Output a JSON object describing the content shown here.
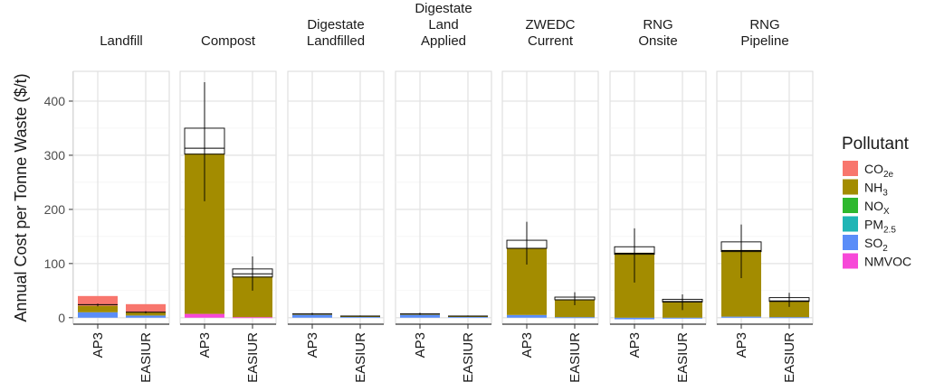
{
  "chart_data": {
    "type": "bar",
    "stacked": true,
    "ylabel": "Annual Cost per Tonne Waste ($/t)",
    "ylim": [
      -12,
      455
    ],
    "yticks": [
      0,
      100,
      200,
      300,
      400
    ],
    "grid": true,
    "legend_position": "right",
    "legend": {
      "title": "Pollutant",
      "items": [
        {
          "key": "CO2e",
          "base": "CO",
          "sub": "2e",
          "color": "#F8766D"
        },
        {
          "key": "NH3",
          "base": "NH",
          "sub": "3",
          "color": "#A38C00"
        },
        {
          "key": "NOX",
          "base": "NO",
          "sub": "X",
          "color": "#2EB82E"
        },
        {
          "key": "PM25",
          "base": "PM",
          "sub": "2.5",
          "color": "#1FB5B5"
        },
        {
          "key": "SO2",
          "base": "SO",
          "sub": "2",
          "color": "#5A8DF8"
        },
        {
          "key": "NMVOC",
          "base": "NMVOC",
          "sub": "",
          "color": "#F748D8"
        }
      ]
    },
    "categories": [
      "AP3",
      "EASIUR"
    ],
    "category_labels": [
      "AP3",
      "EASIUR"
    ],
    "facets": [
      {
        "title": [
          "Landfill"
        ],
        "bars": [
          {
            "segments": [
              {
                "key": "SO2",
                "value": 10
              },
              {
                "key": "NH3",
                "value": 12
              },
              {
                "key": "CO2e",
                "value": 18
              }
            ],
            "median": 24,
            "errlow": 21,
            "errhigh": 26
          },
          {
            "segments": [
              {
                "key": "SO2",
                "value": 4
              },
              {
                "key": "NH3",
                "value": 6
              },
              {
                "key": "CO2e",
                "value": 15
              }
            ],
            "median": 10,
            "errlow": 8,
            "errhigh": 12
          }
        ]
      },
      {
        "title": [
          "Compost"
        ],
        "bars": [
          {
            "segments": [
              {
                "key": "NMVOC",
                "value": 7
              },
              {
                "key": "NH3",
                "value": 296
              }
            ],
            "box": [
              302,
              350
            ],
            "median": 313,
            "errlow": 215,
            "errhigh": 435
          },
          {
            "segments": [
              {
                "key": "NMVOC",
                "value": 1
              },
              {
                "key": "NH3",
                "value": 75
              }
            ],
            "box": [
              75,
              90
            ],
            "median": 81,
            "errlow": 50,
            "errhigh": 113
          }
        ]
      },
      {
        "title": [
          "Digestate",
          "Landfilled"
        ],
        "bars": [
          {
            "segments": [
              {
                "key": "SO2",
                "value": 6
              },
              {
                "key": "NH3",
                "value": 1
              }
            ],
            "median": 7,
            "errlow": 5,
            "errhigh": 9
          },
          {
            "segments": [
              {
                "key": "SO2",
                "value": 2
              },
              {
                "key": "NH3",
                "value": 1
              }
            ],
            "median": 3,
            "errlow": 2,
            "errhigh": 4
          }
        ]
      },
      {
        "title": [
          "Digestate",
          "Land",
          "Applied"
        ],
        "bars": [
          {
            "segments": [
              {
                "key": "SO2",
                "value": 6
              },
              {
                "key": "NH3",
                "value": 1
              }
            ],
            "median": 7,
            "errlow": 5,
            "errhigh": 9
          },
          {
            "segments": [
              {
                "key": "SO2",
                "value": 2
              },
              {
                "key": "NH3",
                "value": 1
              }
            ],
            "median": 3,
            "errlow": 2,
            "errhigh": 4
          }
        ]
      },
      {
        "title": [
          "ZWEDC",
          "Current"
        ],
        "bars": [
          {
            "segments": [
              {
                "key": "SO2",
                "value": 5
              },
              {
                "key": "NH3",
                "value": 123
              }
            ],
            "box": [
              128,
              143
            ],
            "median": 128,
            "errlow": 98,
            "errhigh": 177
          },
          {
            "segments": [
              {
                "key": "SO2",
                "value": 1
              },
              {
                "key": "NH3",
                "value": 32
              }
            ],
            "box": [
              33,
              38
            ],
            "median": 33,
            "errlow": 23,
            "errhigh": 47
          }
        ]
      },
      {
        "title": [
          "RNG",
          "Onsite"
        ],
        "bars": [
          {
            "negative": {
              "key": "SO2",
              "value": -3
            },
            "segments": [
              {
                "key": "NH3",
                "value": 120
              }
            ],
            "box": [
              117,
              131
            ],
            "median": 119,
            "errlow": 65,
            "errhigh": 165
          },
          {
            "negative": {
              "key": "SO2",
              "value": -1
            },
            "segments": [
              {
                "key": "NH3",
                "value": 30
              }
            ],
            "box": [
              29,
              34
            ],
            "median": 30,
            "errlow": 14,
            "errhigh": 43
          }
        ]
      },
      {
        "title": [
          "RNG",
          "Pipeline"
        ],
        "bars": [
          {
            "segments": [
              {
                "key": "SO2",
                "value": 2
              },
              {
                "key": "NH3",
                "value": 123
              }
            ],
            "box": [
              122,
              140
            ],
            "median": 124,
            "errlow": 73,
            "errhigh": 172
          },
          {
            "segments": [
              {
                "key": "SO2",
                "value": 1
              },
              {
                "key": "NH3",
                "value": 30
              }
            ],
            "box": [
              30,
              37
            ],
            "median": 31,
            "errlow": 20,
            "errhigh": 46
          }
        ]
      }
    ]
  }
}
